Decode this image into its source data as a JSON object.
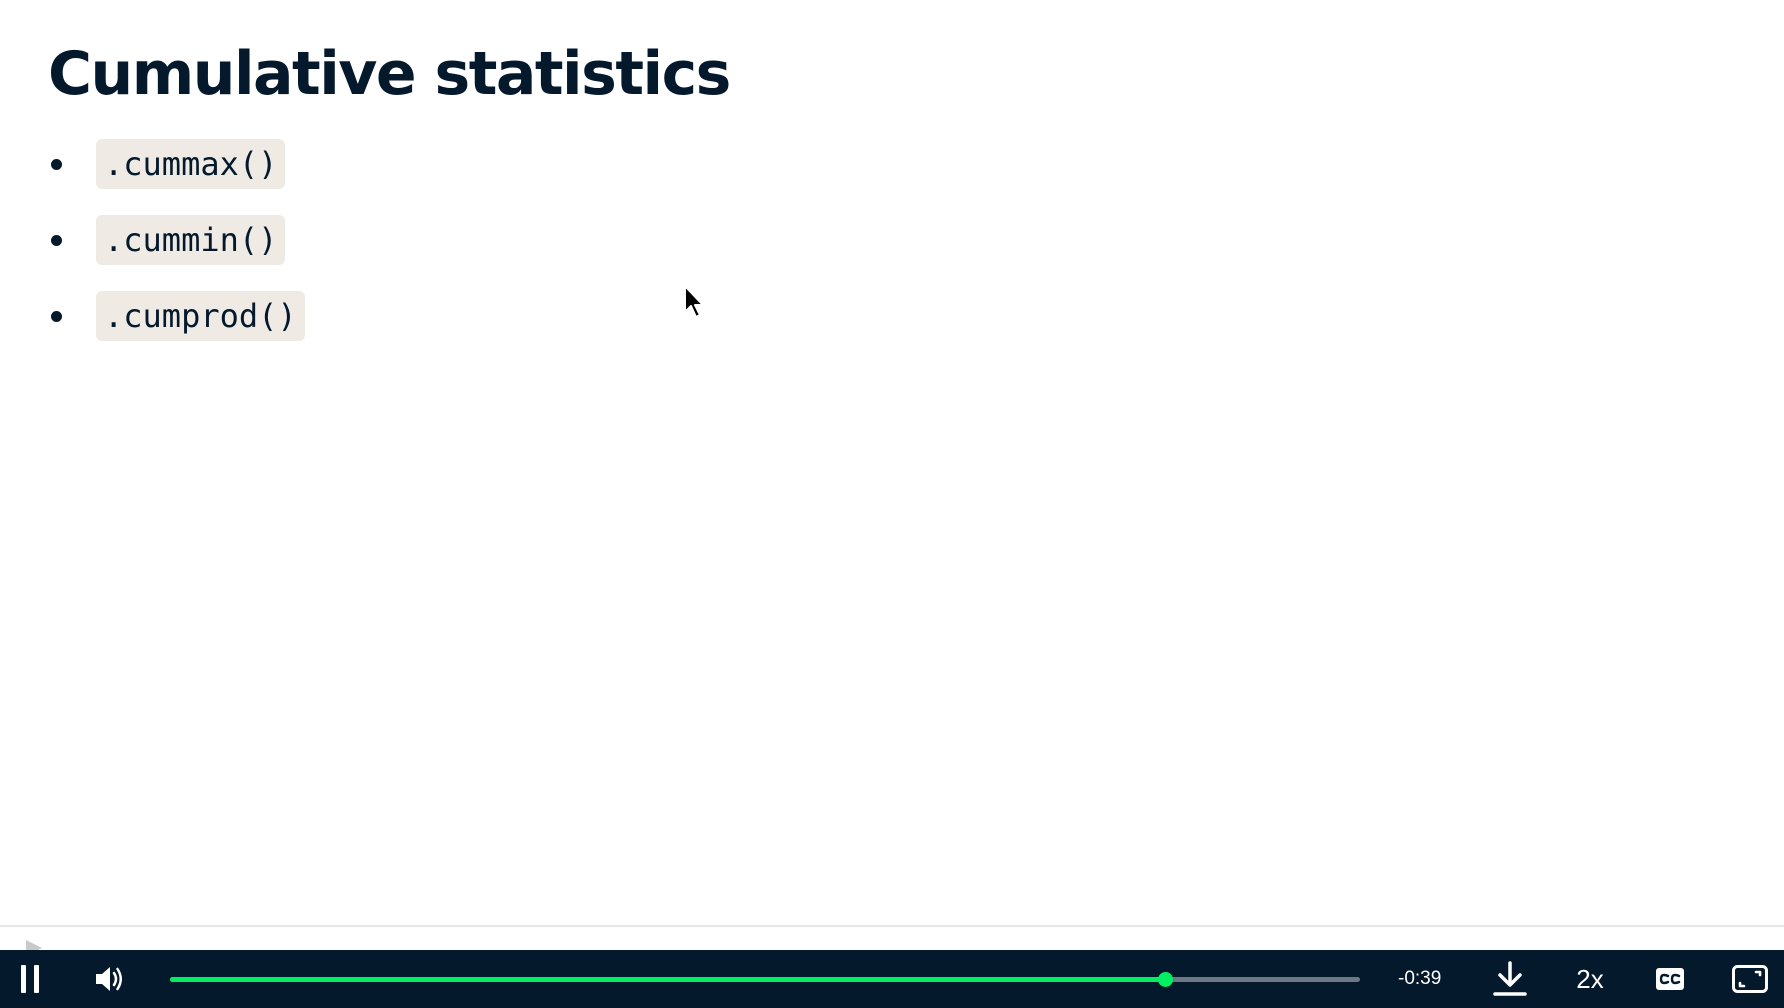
{
  "slide": {
    "title": "Cumulative statistics",
    "bullets": [
      ".cummax()",
      ".cummin()",
      ".cumprod()"
    ]
  },
  "player": {
    "time_remaining": "-0:39",
    "speed_label": "2x",
    "progress_fraction": 0.836,
    "accent_color": "#03ef62",
    "bar_color": "#05192d",
    "icons": {
      "pause": "pause-icon",
      "volume": "volume-icon",
      "download": "download-icon",
      "captions": "closed-captions-icon",
      "fullscreen": "fullscreen-icon"
    }
  }
}
